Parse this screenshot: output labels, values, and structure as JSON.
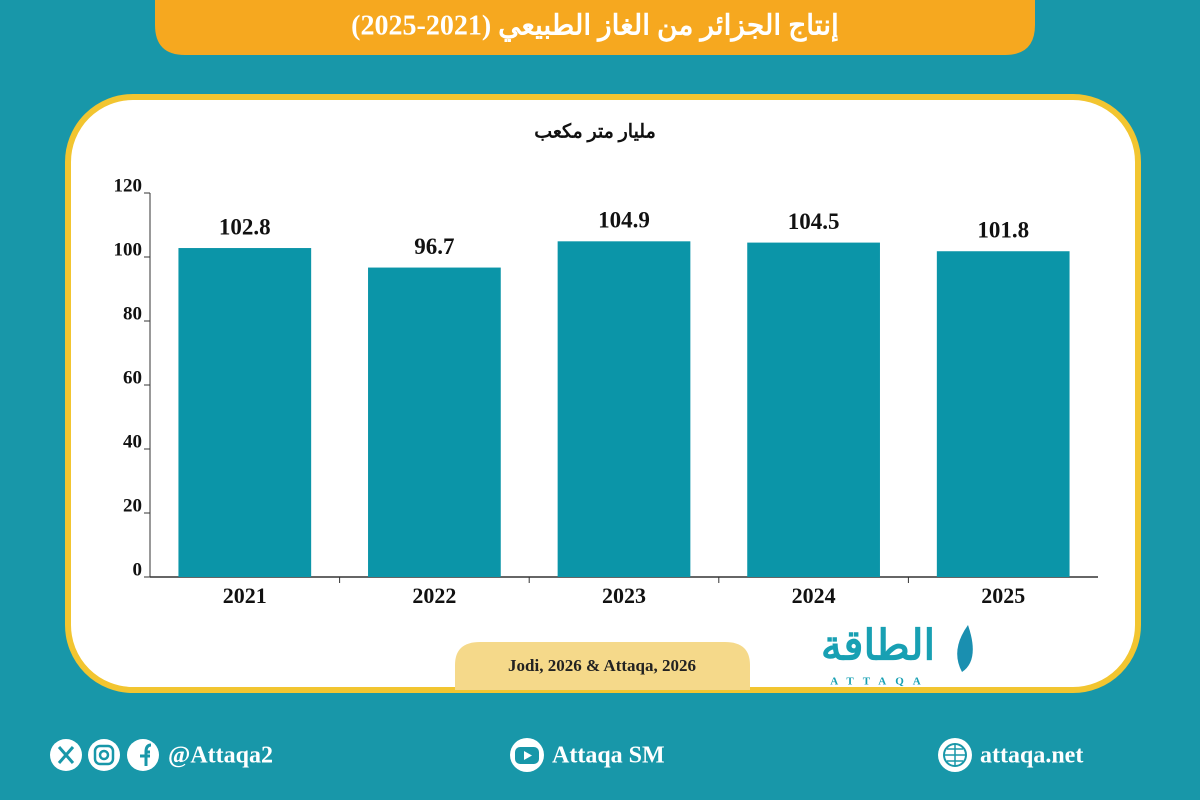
{
  "chart_data": {
    "type": "bar",
    "title": "إنتاج الجزائر من الغاز الطبيعي (2021-2025)",
    "y_label": "مليار متر مكعب",
    "categories": [
      "2021",
      "2022",
      "2023",
      "2024",
      "2025"
    ],
    "values": [
      102.8,
      96.7,
      104.9,
      104.5,
      101.8
    ],
    "color": "#0b95a8",
    "ylim": [
      0,
      120
    ],
    "yticks": [
      0,
      20,
      40,
      60,
      80,
      100,
      120
    ],
    "source": "Jodi, 2026 & Attaqa, 2026"
  },
  "logo": {
    "name": "الطاقة",
    "latin": "ATTAQA"
  },
  "footer": {
    "social": "@Attaqa2",
    "youtube": "Attaqa SM",
    "website": "attaqa.net"
  }
}
